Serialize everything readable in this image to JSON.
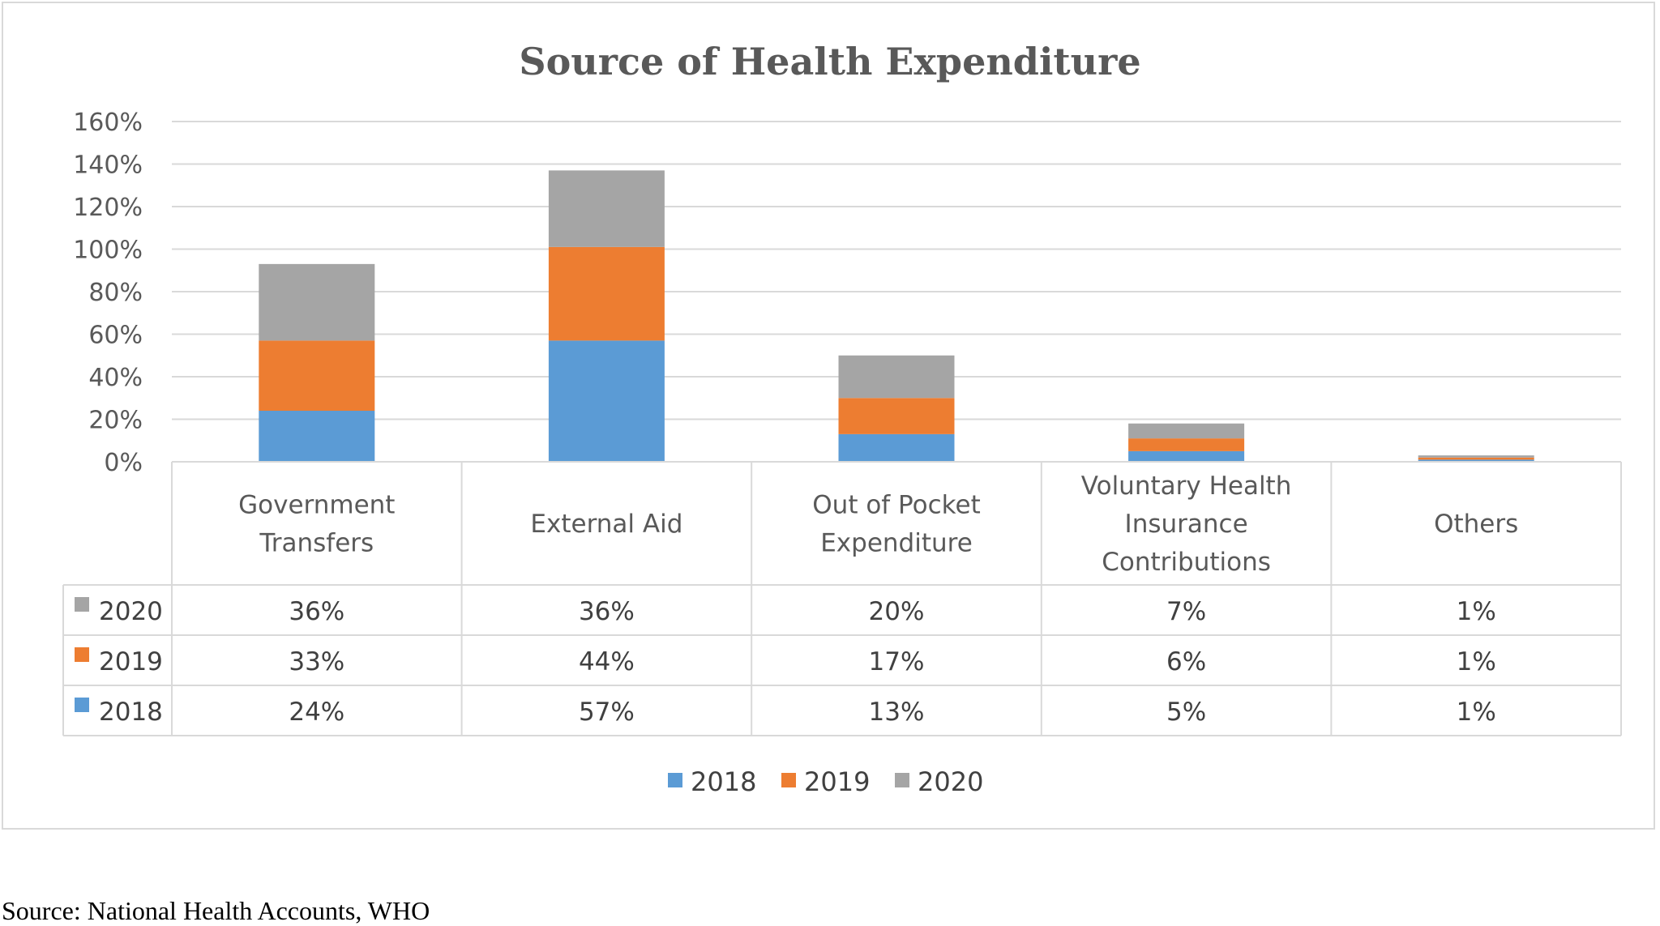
{
  "chart_data": {
    "type": "bar",
    "stacked": true,
    "title": "Source of  Health Expenditure",
    "categories": [
      [
        "Government",
        "Transfers"
      ],
      [
        "External Aid"
      ],
      [
        "Out of Pocket",
        "Expenditure"
      ],
      [
        "Voluntary Health",
        "Insurance",
        "Contributions"
      ],
      [
        "Others"
      ]
    ],
    "series": [
      {
        "name": "2018",
        "color": "#5b9bd5",
        "values": [
          24,
          57,
          13,
          5,
          1
        ],
        "labels": [
          "24%",
          "57%",
          "13%",
          "5%",
          "1%"
        ]
      },
      {
        "name": "2019",
        "color": "#ed7d31",
        "values": [
          33,
          44,
          17,
          6,
          1
        ],
        "labels": [
          "33%",
          "44%",
          "17%",
          "6%",
          "1%"
        ]
      },
      {
        "name": "2020",
        "color": "#a5a5a5",
        "values": [
          36,
          36,
          20,
          7,
          1
        ],
        "labels": [
          "36%",
          "36%",
          "20%",
          "7%",
          "1%"
        ]
      }
    ],
    "ylim": [
      0,
      160
    ],
    "yticks": [
      "0%",
      "20%",
      "40%",
      "60%",
      "80%",
      "100%",
      "120%",
      "140%",
      "160%"
    ],
    "grid": true,
    "data_table": true,
    "legend_position": "bottom"
  },
  "source_note": "Source: National Health Accounts, WHO"
}
